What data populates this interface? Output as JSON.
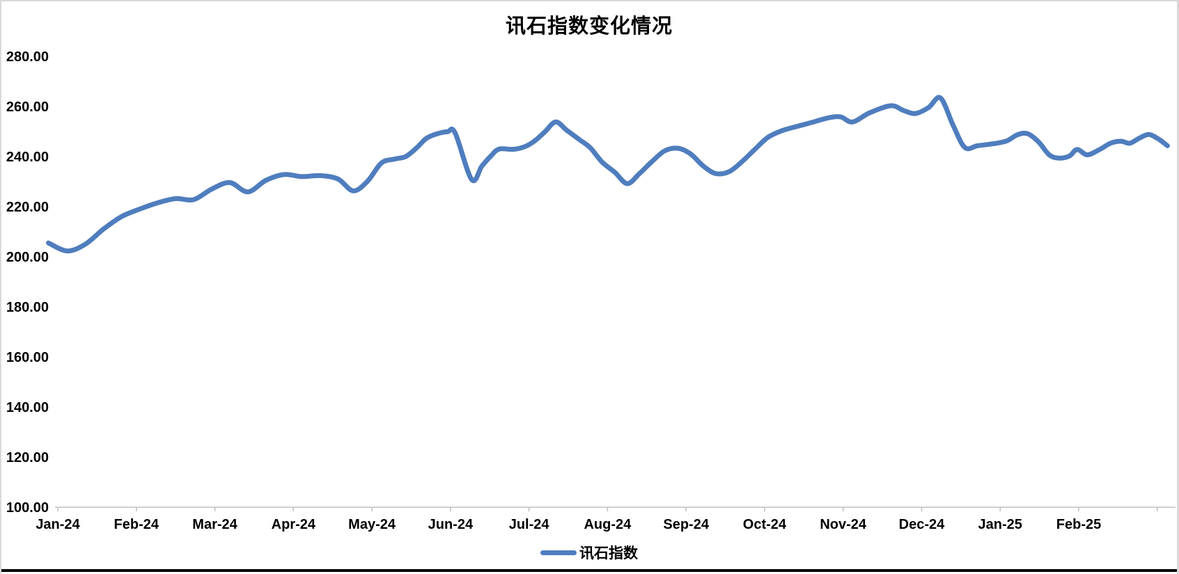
{
  "page": {
    "background": "#ffffff",
    "border_color": "#d9d9d9",
    "bottom_rule_color": "#000000"
  },
  "chart_data": {
    "type": "line",
    "title": "讯石指数变化情况",
    "xlabel": "",
    "ylabel": "",
    "ylim": [
      100,
      280
    ],
    "y_step": 20,
    "grid": "off",
    "smooth": true,
    "legend_position": "bottom-center",
    "axis_color": "#bfbfbf",
    "text_color": "#000000",
    "x_tick_labels": [
      "Jan-24",
      "Feb-24",
      "Mar-24",
      "Apr-24",
      "May-24",
      "Jun-24",
      "Jul-24",
      "Aug-24",
      "Sep-24",
      "Oct-24",
      "Nov-24",
      "Dec-24",
      "Jan-25",
      "Feb-25"
    ],
    "y_tick_labels": [
      "280.00",
      "260.00",
      "240.00",
      "220.00",
      "200.00",
      "180.00",
      "160.00",
      "140.00",
      "120.00",
      "100.00"
    ],
    "series": [
      {
        "name": "讯石指数",
        "color": "#4f7dbe",
        "x_unit": "months_from_Jan-24",
        "points": [
          [
            -0.12,
            205.5
          ],
          [
            0.12,
            202.3
          ],
          [
            0.35,
            205.0
          ],
          [
            0.58,
            211.0
          ],
          [
            0.81,
            216.0
          ],
          [
            1.04,
            219.0
          ],
          [
            1.27,
            221.5
          ],
          [
            1.5,
            223.2
          ],
          [
            1.73,
            222.8
          ],
          [
            1.96,
            227.0
          ],
          [
            2.19,
            229.6
          ],
          [
            2.42,
            225.9
          ],
          [
            2.65,
            230.5
          ],
          [
            2.88,
            232.8
          ],
          [
            3.11,
            232.0
          ],
          [
            3.34,
            232.4
          ],
          [
            3.57,
            231.0
          ],
          [
            3.76,
            226.3
          ],
          [
            3.94,
            230.0
          ],
          [
            4.12,
            237.4
          ],
          [
            4.29,
            239.0
          ],
          [
            4.43,
            240.0
          ],
          [
            4.57,
            243.5
          ],
          [
            4.69,
            247.2
          ],
          [
            4.82,
            249.0
          ],
          [
            4.96,
            249.9
          ],
          [
            5.06,
            249.4
          ],
          [
            5.27,
            230.8
          ],
          [
            5.4,
            236.2
          ],
          [
            5.52,
            240.4
          ],
          [
            5.62,
            243.0
          ],
          [
            5.8,
            242.9
          ],
          [
            5.95,
            244.0
          ],
          [
            6.07,
            246.2
          ],
          [
            6.2,
            249.8
          ],
          [
            6.34,
            253.8
          ],
          [
            6.48,
            250.5
          ],
          [
            6.64,
            246.8
          ],
          [
            6.78,
            243.5
          ],
          [
            6.93,
            237.8
          ],
          [
            7.09,
            233.8
          ],
          [
            7.25,
            229.2
          ],
          [
            7.4,
            233.0
          ],
          [
            7.56,
            237.8
          ],
          [
            7.73,
            242.3
          ],
          [
            7.9,
            243.3
          ],
          [
            8.06,
            241.0
          ],
          [
            8.22,
            236.2
          ],
          [
            8.38,
            233.2
          ],
          [
            8.55,
            234.0
          ],
          [
            8.72,
            238.2
          ],
          [
            8.88,
            243.0
          ],
          [
            9.04,
            247.6
          ],
          [
            9.21,
            250.2
          ],
          [
            9.41,
            252.0
          ],
          [
            9.6,
            253.6
          ],
          [
            9.82,
            255.5
          ],
          [
            9.97,
            255.8
          ],
          [
            10.12,
            253.8
          ],
          [
            10.34,
            257.5
          ],
          [
            10.61,
            260.3
          ],
          [
            10.77,
            258.4
          ],
          [
            10.92,
            257.2
          ],
          [
            11.09,
            259.6
          ],
          [
            11.24,
            263.4
          ],
          [
            11.4,
            252.5
          ],
          [
            11.55,
            243.6
          ],
          [
            11.71,
            244.3
          ],
          [
            11.91,
            245.1
          ],
          [
            12.08,
            246.2
          ],
          [
            12.22,
            248.7
          ],
          [
            12.35,
            249.1
          ],
          [
            12.49,
            245.8
          ],
          [
            12.62,
            240.8
          ],
          [
            12.74,
            239.4
          ],
          [
            12.88,
            240.2
          ],
          [
            12.98,
            242.8
          ],
          [
            13.11,
            240.7
          ],
          [
            13.27,
            242.9
          ],
          [
            13.41,
            245.4
          ],
          [
            13.54,
            246.1
          ],
          [
            13.65,
            245.3
          ],
          [
            13.77,
            247.3
          ],
          [
            13.89,
            248.8
          ],
          [
            14.01,
            247.1
          ],
          [
            14.13,
            244.3
          ]
        ]
      }
    ]
  }
}
